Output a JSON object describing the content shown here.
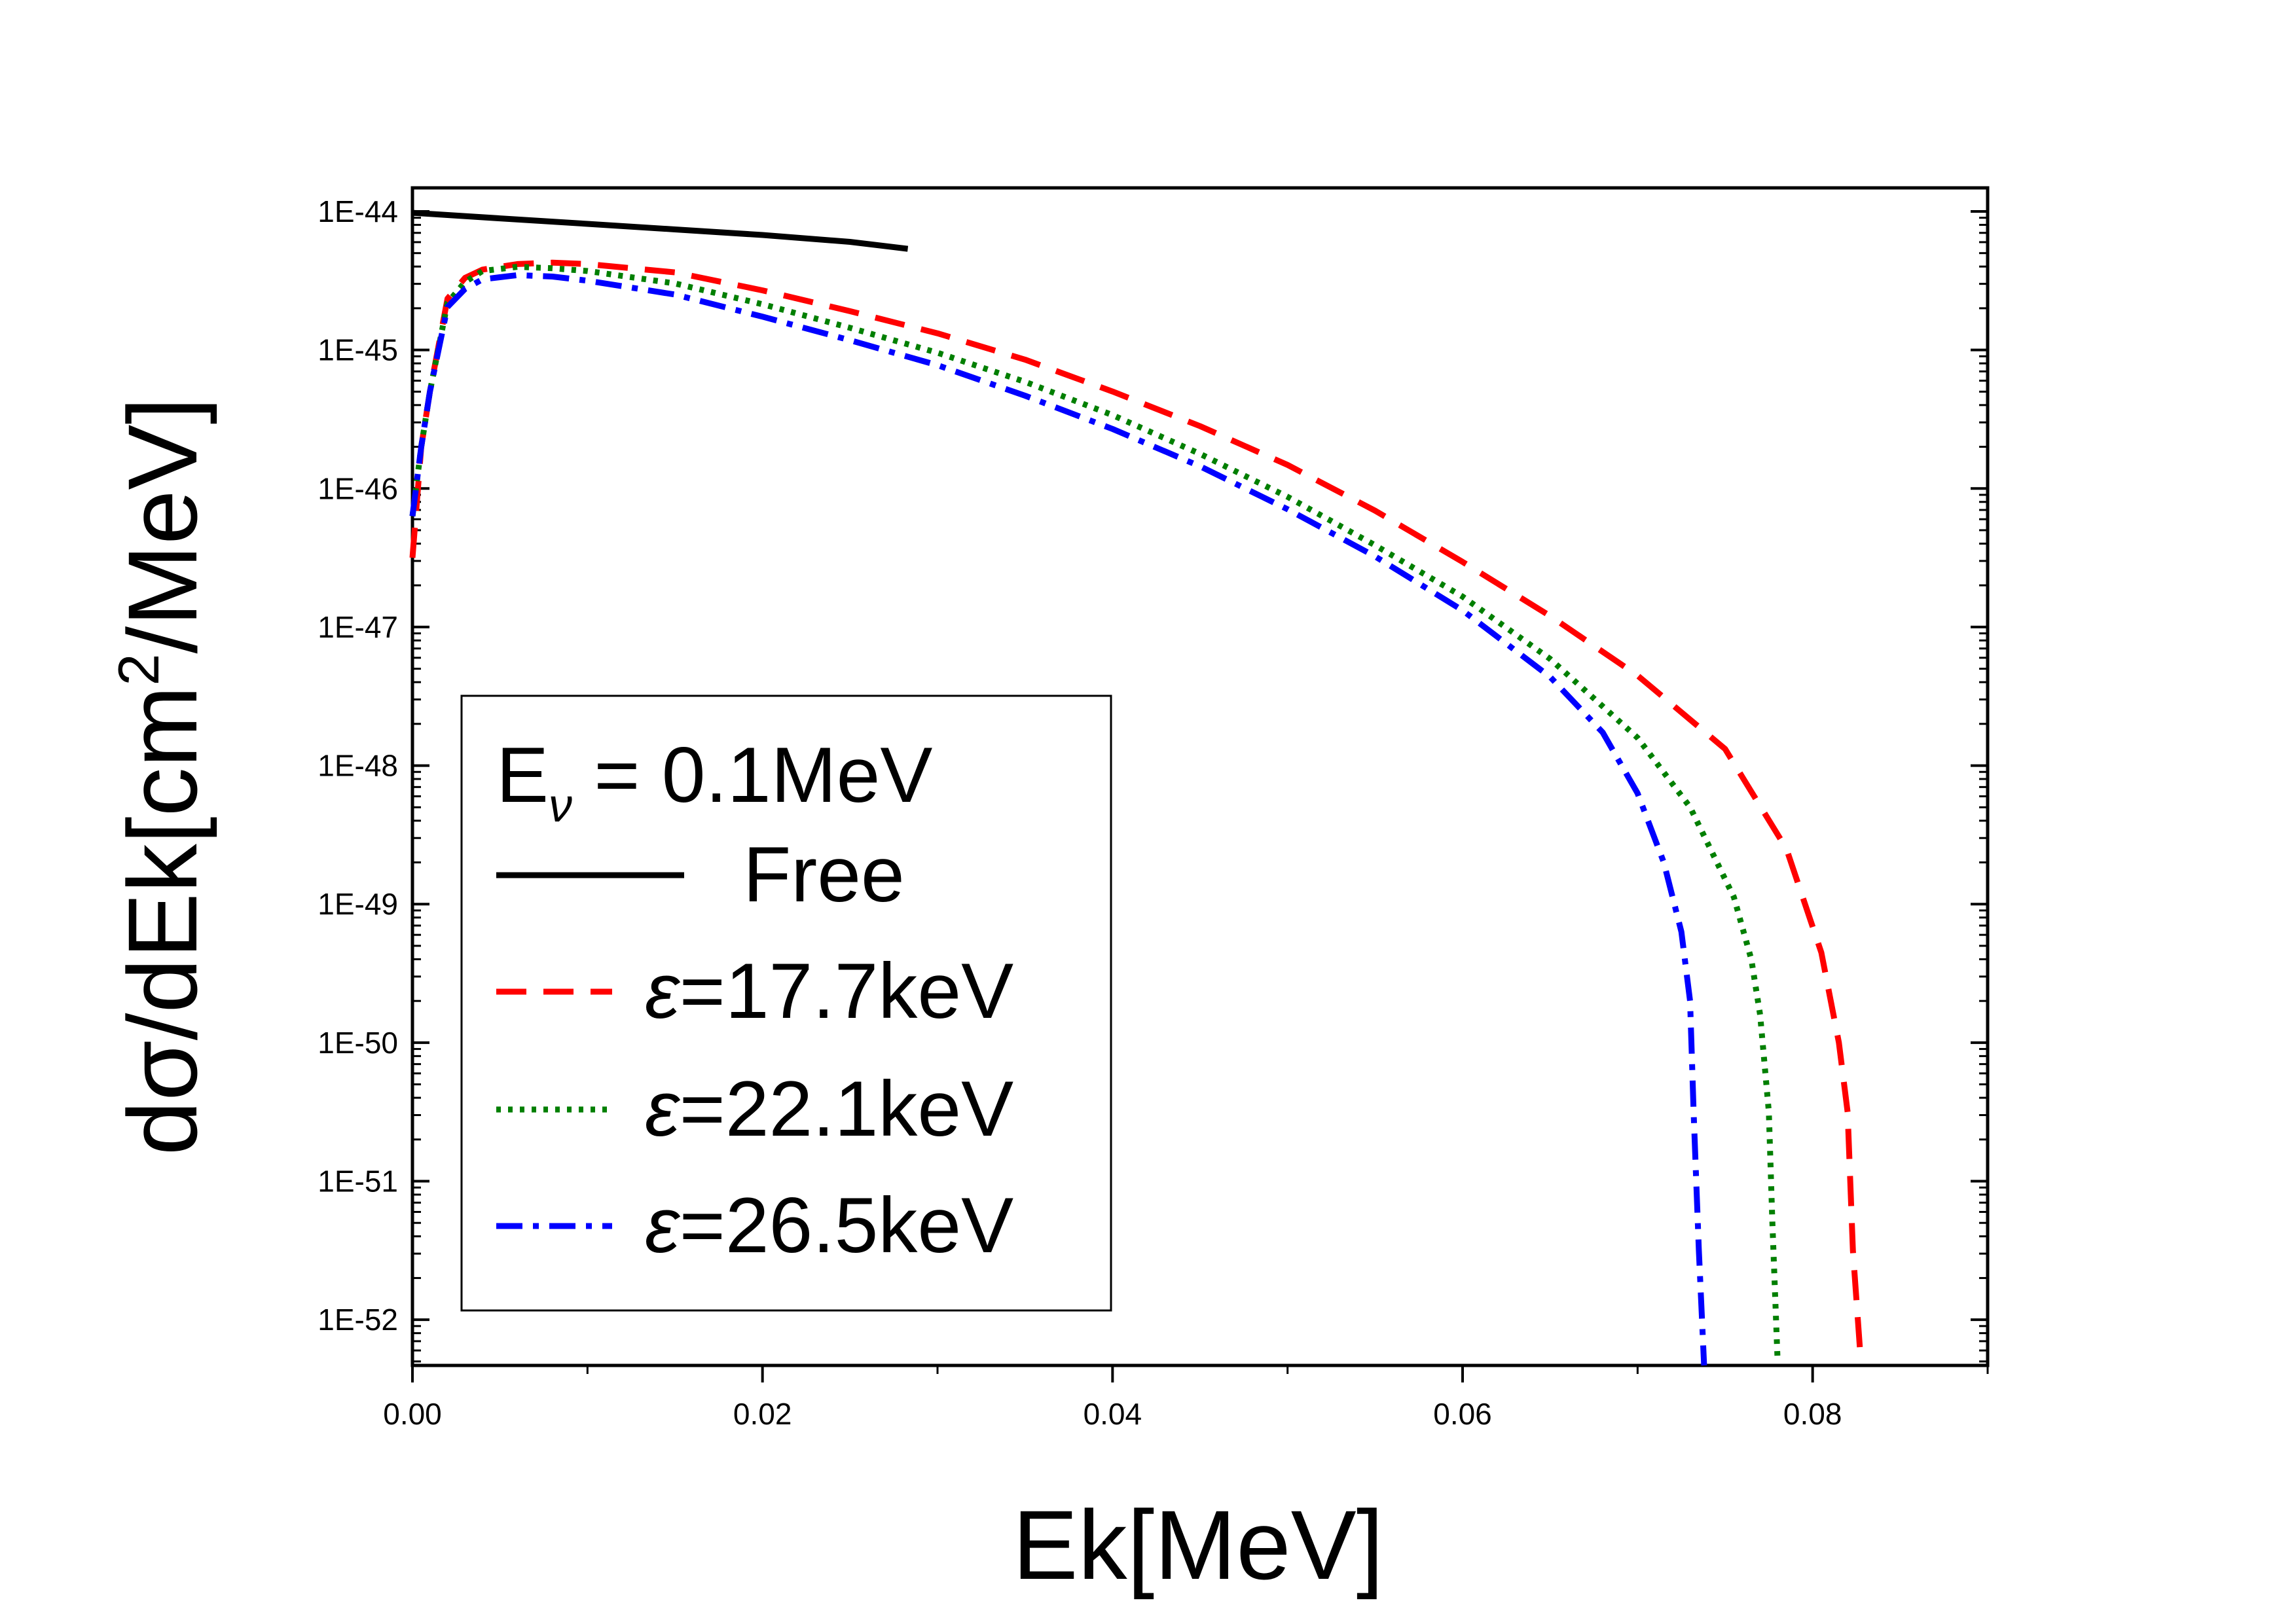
{
  "chart_data": {
    "type": "line",
    "xlabel": "Ek[MeV]",
    "ylabel": "dσ/dEk[cm²/MeV]",
    "ylabel_parts": {
      "pre": "dσ/dEk[cm",
      "sup": "2",
      "post": "/MeV]"
    },
    "y_scale": "log",
    "xlim": [
      0.0,
      0.09
    ],
    "ylim_log10": [
      -52.33,
      -43.83
    ],
    "x_ticks": [
      {
        "value": 0.0,
        "label": "0.00"
      },
      {
        "value": 0.02,
        "label": "0.02"
      },
      {
        "value": 0.04,
        "label": "0.04"
      },
      {
        "value": 0.06,
        "label": "0.06"
      },
      {
        "value": 0.08,
        "label": "0.08"
      }
    ],
    "y_ticks": [
      {
        "log10": -44,
        "label": "1E-44"
      },
      {
        "log10": -45,
        "label": "1E-45"
      },
      {
        "log10": -46,
        "label": "1E-46"
      },
      {
        "log10": -47,
        "label": "1E-47"
      },
      {
        "log10": -48,
        "label": "1E-48"
      },
      {
        "log10": -49,
        "label": "1E-49"
      },
      {
        "log10": -50,
        "label": "1E-50"
      },
      {
        "log10": -51,
        "label": "1E-51"
      },
      {
        "log10": -52,
        "label": "1E-52"
      }
    ],
    "legend": {
      "placement": "lower-left",
      "title_main": "E",
      "title_sub": "ν",
      "title_rest": " = 0.1MeV"
    },
    "series": [
      {
        "name": "Free",
        "eps_symbol": "",
        "label_rest": "Free",
        "color": "#000000",
        "dash": "solid",
        "points": [
          [
            0.0,
            -44.01
          ],
          [
            0.005,
            -44.05
          ],
          [
            0.01,
            -44.09
          ],
          [
            0.015,
            -44.13
          ],
          [
            0.02,
            -44.17
          ],
          [
            0.025,
            -44.22
          ],
          [
            0.0283,
            -44.27
          ]
        ]
      },
      {
        "name": "ε=17.7keV",
        "eps_symbol": "ε",
        "label_rest": "=17.7keV",
        "color": "#ff0000",
        "dash": "dash",
        "points": [
          [
            0.0,
            -46.5
          ],
          [
            0.0005,
            -45.7
          ],
          [
            0.001,
            -45.3
          ],
          [
            0.002,
            -44.63
          ],
          [
            0.003,
            -44.48
          ],
          [
            0.004,
            -44.42
          ],
          [
            0.006,
            -44.38
          ],
          [
            0.008,
            -44.37
          ],
          [
            0.01,
            -44.38
          ],
          [
            0.015,
            -44.44
          ],
          [
            0.02,
            -44.57
          ],
          [
            0.025,
            -44.72
          ],
          [
            0.03,
            -44.88
          ],
          [
            0.035,
            -45.07
          ],
          [
            0.04,
            -45.3
          ],
          [
            0.045,
            -45.55
          ],
          [
            0.05,
            -45.83
          ],
          [
            0.055,
            -46.16
          ],
          [
            0.06,
            -46.53
          ],
          [
            0.065,
            -46.92
          ],
          [
            0.07,
            -47.35
          ],
          [
            0.075,
            -47.88
          ],
          [
            0.0785,
            -48.6
          ],
          [
            0.0805,
            -49.35
          ],
          [
            0.0815,
            -50.0
          ],
          [
            0.082,
            -50.5
          ],
          [
            0.0823,
            -51.5
          ],
          [
            0.0827,
            -52.2
          ]
        ]
      },
      {
        "name": "ε=22.1keV",
        "eps_symbol": "ε",
        "label_rest": "=22.1keV",
        "color": "#007f00",
        "dash": "dot",
        "points": [
          [
            0.0,
            -46.2
          ],
          [
            0.0005,
            -45.7
          ],
          [
            0.001,
            -45.3
          ],
          [
            0.002,
            -44.66
          ],
          [
            0.003,
            -44.51
          ],
          [
            0.004,
            -44.43
          ],
          [
            0.006,
            -44.4
          ],
          [
            0.008,
            -44.41
          ],
          [
            0.01,
            -44.43
          ],
          [
            0.015,
            -44.52
          ],
          [
            0.02,
            -44.67
          ],
          [
            0.025,
            -44.84
          ],
          [
            0.03,
            -45.02
          ],
          [
            0.035,
            -45.23
          ],
          [
            0.04,
            -45.47
          ],
          [
            0.045,
            -45.75
          ],
          [
            0.05,
            -46.06
          ],
          [
            0.055,
            -46.41
          ],
          [
            0.06,
            -46.78
          ],
          [
            0.065,
            -47.23
          ],
          [
            0.07,
            -47.8
          ],
          [
            0.073,
            -48.3
          ],
          [
            0.0755,
            -48.95
          ],
          [
            0.0765,
            -49.4
          ],
          [
            0.077,
            -49.8
          ],
          [
            0.0775,
            -50.5
          ],
          [
            0.0777,
            -51.3
          ],
          [
            0.078,
            -52.3
          ]
        ]
      },
      {
        "name": "ε=26.5keV",
        "eps_symbol": "ε",
        "label_rest": "=26.5keV",
        "color": "#0000ff",
        "dash": "dashdot",
        "points": [
          [
            0.0,
            -46.2
          ],
          [
            0.0005,
            -45.7
          ],
          [
            0.001,
            -45.3
          ],
          [
            0.002,
            -44.69
          ],
          [
            0.003,
            -44.56
          ],
          [
            0.004,
            -44.49
          ],
          [
            0.006,
            -44.46
          ],
          [
            0.008,
            -44.47
          ],
          [
            0.01,
            -44.5
          ],
          [
            0.015,
            -44.6
          ],
          [
            0.02,
            -44.76
          ],
          [
            0.025,
            -44.93
          ],
          [
            0.03,
            -45.11
          ],
          [
            0.035,
            -45.33
          ],
          [
            0.04,
            -45.57
          ],
          [
            0.045,
            -45.84
          ],
          [
            0.05,
            -46.15
          ],
          [
            0.055,
            -46.49
          ],
          [
            0.06,
            -46.88
          ],
          [
            0.065,
            -47.36
          ],
          [
            0.068,
            -47.76
          ],
          [
            0.07,
            -48.2
          ],
          [
            0.0715,
            -48.7
          ],
          [
            0.0725,
            -49.2
          ],
          [
            0.073,
            -49.7
          ],
          [
            0.0732,
            -50.5
          ],
          [
            0.0735,
            -51.5
          ],
          [
            0.0738,
            -52.33
          ]
        ]
      }
    ]
  }
}
